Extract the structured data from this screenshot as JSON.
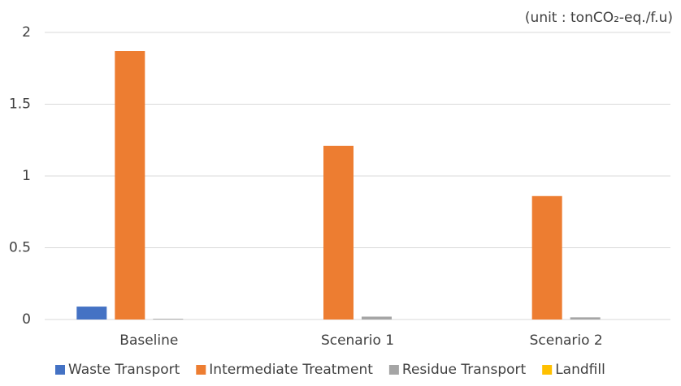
{
  "chart_data": {
    "type": "bar",
    "annotation": "(unit : tonCO₂-eq./f.u)",
    "categories": [
      "Baseline",
      "Scenario 1",
      "Scenario 2"
    ],
    "series": [
      {
        "name": "Waste Transport",
        "color": "#4472c4",
        "values": [
          0.09,
          0,
          0
        ]
      },
      {
        "name": "Intermediate Treatment",
        "color": "#ed7d31",
        "values": [
          1.87,
          1.21,
          0.86
        ]
      },
      {
        "name": "Residue Transport",
        "color": "#a5a5a5",
        "values": [
          0.005,
          0.02,
          0.015
        ]
      },
      {
        "name": "Landfill",
        "color": "#ffc000",
        "values": [
          0,
          0,
          0
        ]
      }
    ],
    "ylim": [
      0,
      2
    ],
    "yticks": [
      0,
      0.5,
      1,
      1.5,
      2
    ],
    "grid": true,
    "legend": "bottom"
  }
}
